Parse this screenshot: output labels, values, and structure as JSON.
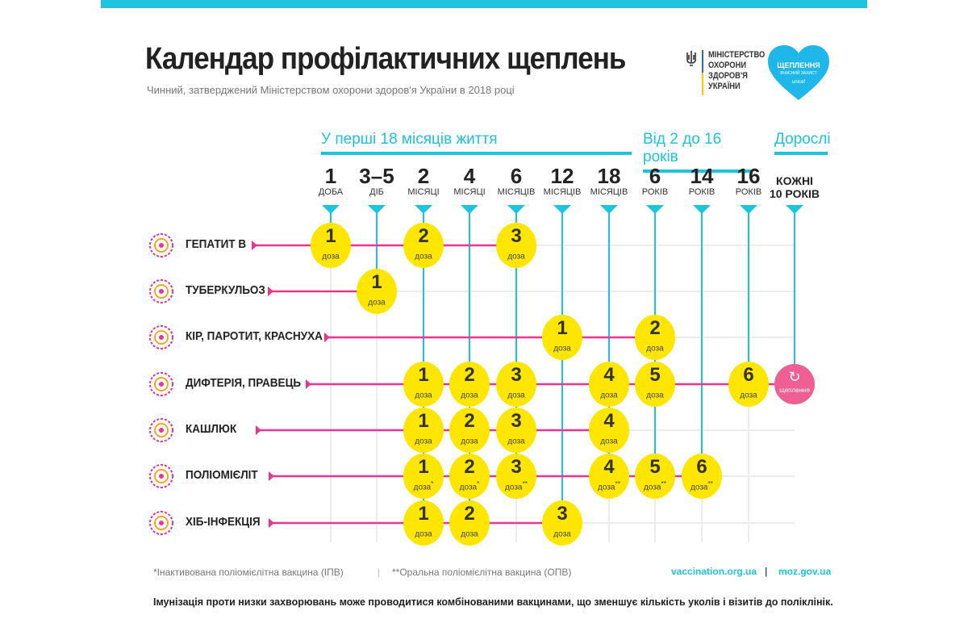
{
  "header": {
    "title": "Календар профілактичних щеплень",
    "subtitle": "Чинний, затверджений Міністерством охорони здоров'я України в 2018 році",
    "ministry_logo": [
      "МІНІСТЕРСТВО",
      "ОХОРОНИ",
      "ЗДОРОВ'Я",
      "УКРАЇНИ"
    ],
    "campaign_logo": {
      "title": "ЩЕПЛЕННЯ",
      "subtitle": "ВЧАСНИЙ ЗАХИСТ",
      "brand": "unicef"
    }
  },
  "colors": {
    "accent": "#1ec3dc",
    "dose": "#ffe600",
    "row_line": "#e8358f",
    "revaccination": "#ef5f93"
  },
  "sections": [
    {
      "label": "У перші 18 місяців життя"
    },
    {
      "label": "Від 2 до 16 років"
    },
    {
      "label": "Дорослі"
    }
  ],
  "columns": [
    {
      "n": "1",
      "u": "ДОБА"
    },
    {
      "n": "3–5",
      "u": "ДІБ"
    },
    {
      "n": "2",
      "u": "МІСЯЦІ"
    },
    {
      "n": "4",
      "u": "МІСЯЦІ"
    },
    {
      "n": "6",
      "u": "МІСЯЦІВ"
    },
    {
      "n": "12",
      "u": "МІСЯЦІВ"
    },
    {
      "n": "18",
      "u": "МІСЯЦІВ"
    },
    {
      "n": "6",
      "u": "РОКІВ"
    },
    {
      "n": "14",
      "u": "РОКІВ"
    },
    {
      "n": "16",
      "u": "РОКІВ"
    },
    {
      "n": "КОЖНІ",
      "u": "10 РОКІВ"
    }
  ],
  "dose_label": "доза",
  "revaccination_label": "щеплення",
  "rows": [
    {
      "name": "ГЕПАТИТ В",
      "icon": "virus-hepatitis-icon",
      "doses": [
        {
          "col": 0,
          "n": "1"
        },
        {
          "col": 2,
          "n": "2"
        },
        {
          "col": 4,
          "n": "3"
        }
      ]
    },
    {
      "name": "ТУБЕРКУЛЬОЗ",
      "icon": "bacteria-tb-icon",
      "doses": [
        {
          "col": 1,
          "n": "1"
        }
      ]
    },
    {
      "name": "КІР, ПАРОТИТ, КРАСНУХА",
      "icon": "virus-measles-icon",
      "doses": [
        {
          "col": 5,
          "n": "1"
        },
        {
          "col": 7,
          "n": "2"
        }
      ]
    },
    {
      "name": "ДИФТЕРІЯ, ПРАВЕЦЬ",
      "icon": "bacteria-diphtheria-icon",
      "doses": [
        {
          "col": 2,
          "n": "1"
        },
        {
          "col": 3,
          "n": "2"
        },
        {
          "col": 4,
          "n": "3"
        },
        {
          "col": 6,
          "n": "4"
        },
        {
          "col": 7,
          "n": "5"
        },
        {
          "col": 9,
          "n": "6"
        }
      ],
      "revaccination_col": 10
    },
    {
      "name": "КАШЛЮК",
      "icon": "bacteria-pertussis-icon",
      "doses": [
        {
          "col": 2,
          "n": "1"
        },
        {
          "col": 3,
          "n": "2"
        },
        {
          "col": 4,
          "n": "3"
        },
        {
          "col": 6,
          "n": "4"
        }
      ]
    },
    {
      "name": "ПОЛІОМІЄЛІТ",
      "icon": "virus-polio-icon",
      "doses": [
        {
          "col": 2,
          "n": "1",
          "mark": "*"
        },
        {
          "col": 3,
          "n": "2",
          "mark": "*"
        },
        {
          "col": 4,
          "n": "3",
          "mark": "**"
        },
        {
          "col": 6,
          "n": "4",
          "mark": "**"
        },
        {
          "col": 7,
          "n": "5",
          "mark": "**"
        },
        {
          "col": 8,
          "n": "6",
          "mark": "**"
        }
      ]
    },
    {
      "name": "ХІБ-ІНФЕКЦІЯ",
      "icon": "bacteria-hib-icon",
      "doses": [
        {
          "col": 2,
          "n": "1"
        },
        {
          "col": 3,
          "n": "2"
        },
        {
          "col": 5,
          "n": "3"
        }
      ]
    }
  ],
  "footer": {
    "ipv": "*Інактивована поліомієлітна вакцина (ІПВ)",
    "separator": "|",
    "opv": "**Оральна поліомієлітна вакцина (ОПВ)",
    "link1": "vaccination.org.ua",
    "link2": "moz.gov.ua",
    "note": "Імунізація проти низки захворювань може проводитися комбінованими вакцинами, що зменшує кількість уколів і візитів до поліклінік."
  }
}
